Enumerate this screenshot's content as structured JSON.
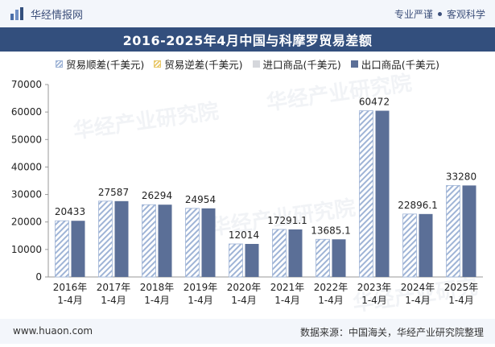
{
  "header": {
    "brand": "华经情报网",
    "slogan_left": "专业严谨",
    "slogan_right": "客观科学"
  },
  "title": "2016-2025年4月中国与科摩罗贸易差额",
  "legend": {
    "surplus": "贸易顺差(千美元)",
    "deficit": "贸易逆差(千美元)",
    "import": "进口商品(千美元)",
    "export": "出口商品(千美元)"
  },
  "watermark": "华经产业研究院",
  "footer": {
    "site": "www.huaon.com",
    "source": "数据来源：中国海关，华经产业研究院整理"
  },
  "colors": {
    "surplus_stripe": "#9fb4d6",
    "deficit_stripe": "#e8c86a",
    "import": "#d5d7dc",
    "export": "#5b6f97",
    "title_bar": "#334f7d"
  },
  "chart_data": {
    "type": "bar",
    "categories": [
      [
        "2016年",
        "1-4月"
      ],
      [
        "2017年",
        "1-4月"
      ],
      [
        "2018年",
        "1-4月"
      ],
      [
        "2019年",
        "1-4月"
      ],
      [
        "2020年",
        "1-4月"
      ],
      [
        "2021年",
        "1-4月"
      ],
      [
        "2022年",
        "1-4月"
      ],
      [
        "2023年",
        "1-4月"
      ],
      [
        "2024年",
        "1-4月"
      ],
      [
        "2025年",
        "1-4月"
      ]
    ],
    "series": [
      {
        "name": "贸易顺差(千美元)",
        "values": [
          20433,
          27587,
          26294,
          24954,
          12014,
          17291.1,
          13685.1,
          60472,
          22896.1,
          33280
        ]
      },
      {
        "name": "进口商品(千美元)",
        "values": [
          0,
          0,
          0,
          0,
          0,
          0,
          0,
          0,
          0,
          0
        ]
      },
      {
        "name": "出口商品(千美元)",
        "values": [
          20433,
          27587,
          26294,
          24954,
          12014,
          17291.1,
          13685.1,
          60472,
          22896.1,
          33280
        ]
      }
    ],
    "data_labels": [
      "20433",
      "27587",
      "26294",
      "24954",
      "12014",
      "17291.1",
      "13685.1",
      "60472",
      "22896.1",
      "33280"
    ],
    "ylim": [
      0,
      70000
    ],
    "yticks": [
      0,
      10000,
      20000,
      30000,
      40000,
      50000,
      60000,
      70000
    ],
    "legend_position": "top",
    "grid": false
  }
}
